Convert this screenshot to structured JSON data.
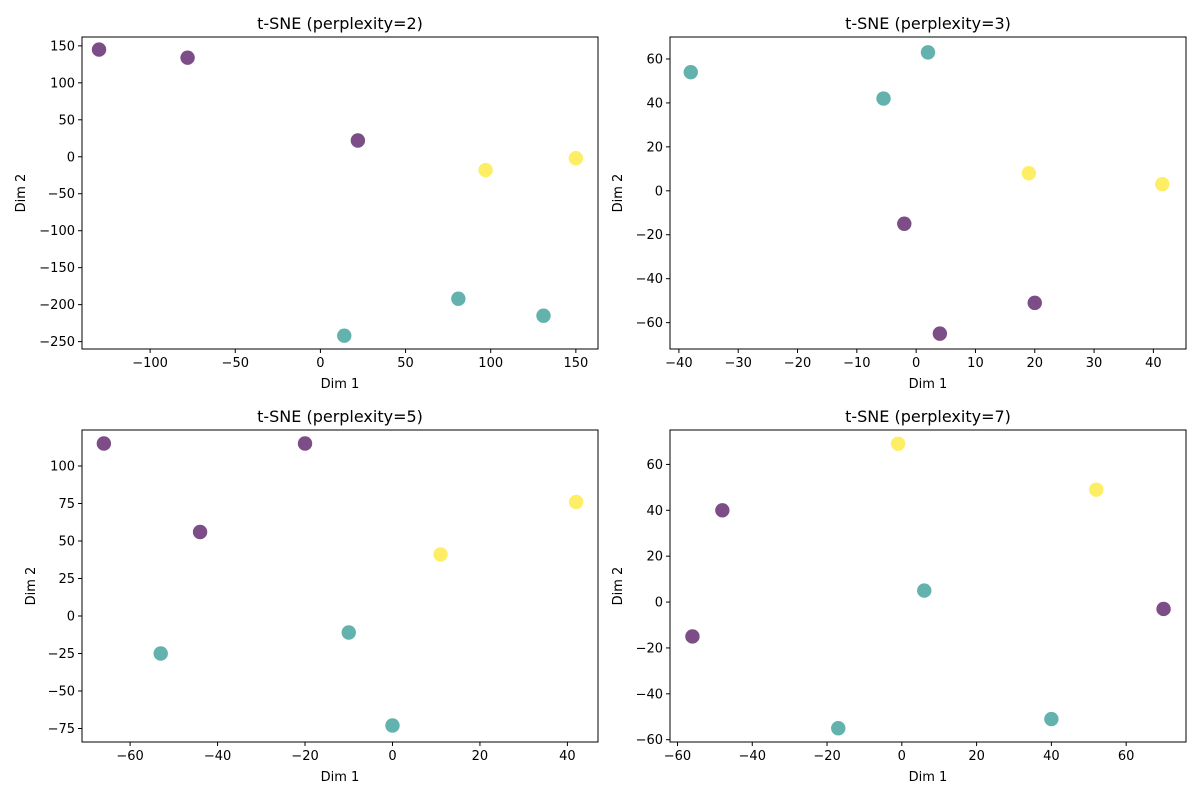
{
  "colors": {
    "purple": "#440154",
    "teal": "#21918c",
    "yellow": "#fde725"
  },
  "chart_data": [
    {
      "type": "scatter",
      "title": "t-SNE (perplexity=2)",
      "xlabel": "Dim 1",
      "ylabel": "Dim 2",
      "xlim": [
        -140,
        163
      ],
      "ylim": [
        -260,
        162
      ],
      "xticks": [
        -100,
        -50,
        0,
        50,
        100,
        150
      ],
      "yticks": [
        -250,
        -200,
        -150,
        -100,
        -50,
        0,
        50,
        100,
        150
      ],
      "tick_labels_x": [
        "−100",
        "−50",
        "0",
        "50",
        "100",
        "150"
      ],
      "tick_labels_y": [
        "−250",
        "−200",
        "−150",
        "−100",
        "−50",
        "0",
        "50",
        "100",
        "150"
      ],
      "points": [
        {
          "x": -130,
          "y": 145,
          "cls": "purple"
        },
        {
          "x": -78,
          "y": 134,
          "cls": "purple"
        },
        {
          "x": 22,
          "y": 22,
          "cls": "purple"
        },
        {
          "x": 97,
          "y": -18,
          "cls": "yellow"
        },
        {
          "x": 150,
          "y": -2,
          "cls": "yellow"
        },
        {
          "x": 81,
          "y": -192,
          "cls": "teal"
        },
        {
          "x": 131,
          "y": -215,
          "cls": "teal"
        },
        {
          "x": 14,
          "y": -242,
          "cls": "teal"
        }
      ]
    },
    {
      "type": "scatter",
      "title": "t-SNE (perplexity=3)",
      "xlabel": "Dim 1",
      "ylabel": "Dim 2",
      "xlim": [
        -41.5,
        45.5
      ],
      "ylim": [
        -72,
        70
      ],
      "xticks": [
        -40,
        -30,
        -20,
        -10,
        0,
        10,
        20,
        30,
        40
      ],
      "yticks": [
        -60,
        -40,
        -20,
        0,
        20,
        40,
        60
      ],
      "tick_labels_x": [
        "−40",
        "−30",
        "−20",
        "−10",
        "0",
        "10",
        "20",
        "30",
        "40"
      ],
      "tick_labels_y": [
        "−60",
        "−40",
        "−20",
        "0",
        "20",
        "40",
        "60"
      ],
      "points": [
        {
          "x": -38,
          "y": 54,
          "cls": "teal"
        },
        {
          "x": 2,
          "y": 63,
          "cls": "teal"
        },
        {
          "x": -5.5,
          "y": 42,
          "cls": "teal"
        },
        {
          "x": 19,
          "y": 8,
          "cls": "yellow"
        },
        {
          "x": 41.5,
          "y": 3,
          "cls": "yellow"
        },
        {
          "x": -2,
          "y": -15,
          "cls": "purple"
        },
        {
          "x": 20,
          "y": -51,
          "cls": "purple"
        },
        {
          "x": 4,
          "y": -65,
          "cls": "purple"
        }
      ]
    },
    {
      "type": "scatter",
      "title": "t-SNE (perplexity=5)",
      "xlabel": "Dim 1",
      "ylabel": "Dim 2",
      "xlim": [
        -71,
        47
      ],
      "ylim": [
        -84,
        124
      ],
      "xticks": [
        -60,
        -40,
        -20,
        0,
        20,
        40
      ],
      "yticks": [
        -75,
        -50,
        -25,
        0,
        25,
        50,
        75,
        100
      ],
      "tick_labels_x": [
        "−60",
        "−40",
        "−20",
        "0",
        "20",
        "40"
      ],
      "tick_labels_y": [
        "−75",
        "−50",
        "−25",
        "0",
        "25",
        "50",
        "75",
        "100"
      ],
      "points": [
        {
          "x": -66,
          "y": 115,
          "cls": "purple"
        },
        {
          "x": -20,
          "y": 115,
          "cls": "purple"
        },
        {
          "x": -44,
          "y": 56,
          "cls": "purple"
        },
        {
          "x": 11,
          "y": 41,
          "cls": "yellow"
        },
        {
          "x": 42,
          "y": 76,
          "cls": "yellow"
        },
        {
          "x": -10,
          "y": -11,
          "cls": "teal"
        },
        {
          "x": -53,
          "y": -25,
          "cls": "teal"
        },
        {
          "x": 0,
          "y": -73,
          "cls": "teal"
        }
      ]
    },
    {
      "type": "scatter",
      "title": "t-SNE (perplexity=7)",
      "xlabel": "Dim 1",
      "ylabel": "Dim 2",
      "xlim": [
        -62,
        76
      ],
      "ylim": [
        -61,
        75
      ],
      "xticks": [
        -60,
        -40,
        -20,
        0,
        20,
        40,
        60
      ],
      "yticks": [
        -60,
        -40,
        -20,
        0,
        20,
        40,
        60
      ],
      "tick_labels_x": [
        "−60",
        "−40",
        "−20",
        "0",
        "20",
        "40",
        "60"
      ],
      "tick_labels_y": [
        "−60",
        "−40",
        "−20",
        "0",
        "20",
        "40",
        "60"
      ],
      "points": [
        {
          "x": -1,
          "y": 69,
          "cls": "yellow"
        },
        {
          "x": 52,
          "y": 49,
          "cls": "yellow"
        },
        {
          "x": -48,
          "y": 40,
          "cls": "purple"
        },
        {
          "x": -56,
          "y": -15,
          "cls": "purple"
        },
        {
          "x": 70,
          "y": -3,
          "cls": "purple"
        },
        {
          "x": 6,
          "y": 5,
          "cls": "teal"
        },
        {
          "x": -17,
          "y": -55,
          "cls": "teal"
        },
        {
          "x": 40,
          "y": -51,
          "cls": "teal"
        }
      ]
    }
  ]
}
